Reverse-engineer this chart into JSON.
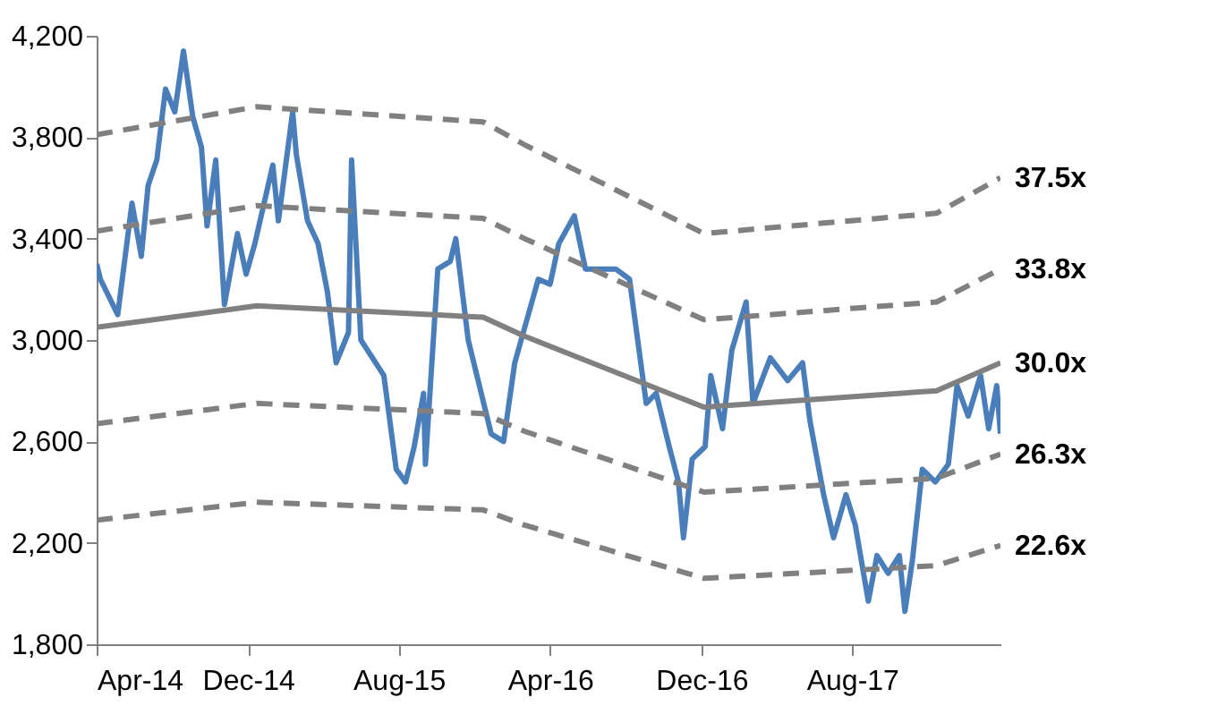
{
  "chart_data": {
    "type": "line",
    "legend": false,
    "grid": false,
    "xlim": [
      "2014-04-01",
      "2018-03-28"
    ],
    "xticks": [
      {
        "value": "2014-04-01",
        "label": "Apr-14"
      },
      {
        "value": "2014-12-01",
        "label": "Dec-14"
      },
      {
        "value": "2015-08-01",
        "label": "Aug-15"
      },
      {
        "value": "2016-04-01",
        "label": "Apr-16"
      },
      {
        "value": "2016-12-01",
        "label": "Dec-16"
      },
      {
        "value": "2017-08-01",
        "label": "Aug-17"
      }
    ],
    "ylim": [
      1800,
      4200
    ],
    "yticks": [
      {
        "value": 1800,
        "label": "1,800"
      },
      {
        "value": 2200,
        "label": "2,200"
      },
      {
        "value": 2600,
        "label": "2,600"
      },
      {
        "value": 3000,
        "label": "3,000"
      },
      {
        "value": 3400,
        "label": "3,400"
      },
      {
        "value": 3800,
        "label": "3,800"
      },
      {
        "value": 4200,
        "label": "4,200"
      }
    ],
    "series": [
      {
        "color": "#4a7ebb",
        "line_style": "solid",
        "x": [
          "2014-04-01",
          "2014-04-07",
          "2014-05-05",
          "2014-05-28",
          "2014-06-12",
          "2014-06-23",
          "2014-07-07",
          "2014-07-21",
          "2014-08-05",
          "2014-08-19",
          "2014-09-03",
          "2014-09-17",
          "2014-09-26",
          "2014-10-10",
          "2014-10-24",
          "2014-11-14",
          "2014-11-28",
          "2014-12-12",
          "2015-01-10",
          "2015-01-19",
          "2015-02-11",
          "2015-02-17",
          "2015-03-07",
          "2015-03-24",
          "2015-04-08",
          "2015-04-22",
          "2015-05-12",
          "2015-05-17",
          "2015-06-01",
          "2015-07-08",
          "2015-07-28",
          "2015-08-12",
          "2015-08-26",
          "2015-09-10",
          "2015-09-13",
          "2015-10-03",
          "2015-10-23",
          "2015-11-01",
          "2015-11-21",
          "2015-12-28",
          "2016-01-17",
          "2016-02-04",
          "2016-03-13",
          "2016-04-01",
          "2016-04-15",
          "2016-05-10",
          "2016-05-28",
          "2016-07-16",
          "2016-08-07",
          "2016-09-03",
          "2016-09-19",
          "2016-10-10",
          "2016-10-25",
          "2016-11-02",
          "2016-11-16",
          "2016-12-07",
          "2016-12-16",
          "2017-01-04",
          "2017-01-19",
          "2017-02-11",
          "2017-02-22",
          "2017-03-22",
          "2017-04-19",
          "2017-05-13",
          "2017-05-25",
          "2017-06-16",
          "2017-07-02",
          "2017-07-22",
          "2017-08-06",
          "2017-08-27",
          "2017-09-10",
          "2017-09-28",
          "2017-10-16",
          "2017-10-25",
          "2017-11-06",
          "2017-11-22",
          "2017-12-13",
          "2018-01-03",
          "2018-01-17",
          "2018-02-04",
          "2018-02-24",
          "2018-03-09",
          "2018-03-22",
          "2018-03-28"
        ],
        "values": [
          3300,
          3240,
          3100,
          3540,
          3330,
          3610,
          3710,
          3990,
          3900,
          4140,
          3880,
          3760,
          3450,
          3710,
          3140,
          3420,
          3260,
          3380,
          3690,
          3470,
          3900,
          3730,
          3470,
          3380,
          3190,
          2910,
          3030,
          3710,
          3000,
          2860,
          2490,
          2440,
          2580,
          2790,
          2510,
          3280,
          3310,
          3400,
          3000,
          2630,
          2600,
          2910,
          3240,
          3220,
          3380,
          3490,
          3280,
          3280,
          3240,
          2750,
          2790,
          2580,
          2440,
          2220,
          2530,
          2580,
          2860,
          2650,
          2960,
          3150,
          2750,
          2930,
          2840,
          2910,
          2680,
          2390,
          2220,
          2390,
          2270,
          1970,
          2150,
          2080,
          2150,
          1930,
          2130,
          2490,
          2440,
          2510,
          2820,
          2700,
          2860,
          2650,
          2820,
          2630
        ]
      },
      {
        "name": "37.5x",
        "color": "#808080",
        "line_style": "dashed",
        "x": [
          "2014-04-01",
          "2014-12-15",
          "2015-12-15",
          "2016-02-20",
          "2016-12-05",
          "2017-12-15",
          "2018-03-28"
        ],
        "values": [
          3810,
          3920,
          3860,
          3770,
          3420,
          3500,
          3640
        ]
      },
      {
        "name": "33.8x",
        "color": "#808080",
        "line_style": "dashed",
        "x": [
          "2014-04-01",
          "2014-12-15",
          "2015-12-15",
          "2016-02-20",
          "2016-12-05",
          "2017-12-15",
          "2018-03-28"
        ],
        "values": [
          3430,
          3530,
          3480,
          3400,
          3080,
          3150,
          3280
        ]
      },
      {
        "name": "30.0x",
        "color": "#808080",
        "line_style": "solid",
        "x": [
          "2014-04-01",
          "2014-12-15",
          "2015-12-15",
          "2016-02-20",
          "2016-12-05",
          "2017-12-15",
          "2018-03-28"
        ],
        "values": [
          3050,
          3135,
          3090,
          3015,
          2735,
          2800,
          2910
        ]
      },
      {
        "name": "26.3x",
        "color": "#808080",
        "line_style": "dashed",
        "x": [
          "2014-04-01",
          "2014-12-15",
          "2015-12-15",
          "2016-02-20",
          "2016-12-05",
          "2017-12-15",
          "2018-03-28"
        ],
        "values": [
          2670,
          2750,
          2710,
          2640,
          2400,
          2455,
          2550
        ]
      },
      {
        "name": "22.6x",
        "color": "#808080",
        "line_style": "dashed",
        "x": [
          "2014-04-01",
          "2014-12-15",
          "2015-12-15",
          "2016-02-20",
          "2016-12-05",
          "2017-12-15",
          "2018-03-28"
        ],
        "values": [
          2290,
          2360,
          2330,
          2270,
          2060,
          2110,
          2190
        ]
      }
    ]
  }
}
